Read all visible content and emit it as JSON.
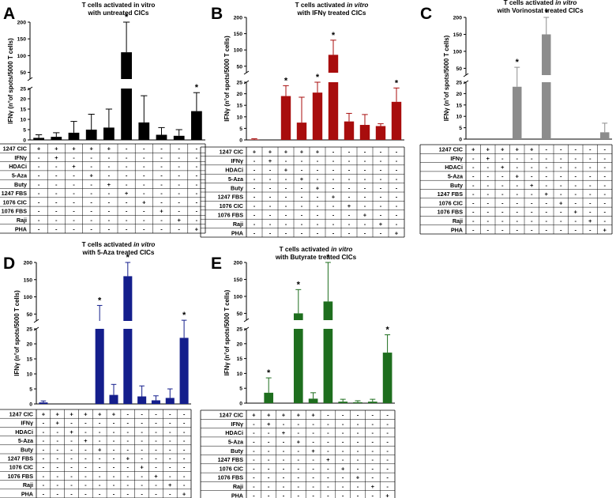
{
  "conditions": [
    "1247 CIC",
    "IFNγ",
    "HDACi",
    "5-Aza",
    "Buty",
    "1247 FBS",
    "1076 CIC",
    "1076 FBS",
    "Raji",
    "PHA"
  ],
  "ylabel": "IFNγ (n°of spots/5000 T cells)",
  "chart_data": [
    {
      "panel": "A",
      "type": "bar",
      "title_lines": [
        [
          {
            "t": "T cells activated in vitro",
            "i": false
          }
        ],
        [
          {
            "t": "with untreated CICs",
            "i": false
          }
        ]
      ],
      "color": "#000000",
      "ylabel": "IFNγ (n°of spots/5000 T cells)",
      "y_lower_ticks": [
        0,
        5,
        10,
        15,
        20,
        25
      ],
      "y_upper_ticks": [
        50,
        100,
        150,
        200
      ],
      "ylim_lower": [
        0,
        25
      ],
      "ylim_upper": [
        30,
        200
      ],
      "values": [
        1,
        1.5,
        3.5,
        5,
        6,
        110,
        8.5,
        2.5,
        2,
        14
      ],
      "errors": [
        1.5,
        2,
        5.5,
        7.5,
        9,
        90,
        13,
        3.5,
        3,
        9
      ],
      "significant": [
        false,
        false,
        false,
        false,
        false,
        true,
        false,
        false,
        false,
        true
      ],
      "condition_signs": [
        [
          "+",
          "+",
          "+",
          "+",
          "+",
          "-",
          "-",
          "-",
          "-",
          "-"
        ],
        [
          "-",
          "+",
          "-",
          "-",
          "-",
          "-",
          "-",
          "-",
          "-",
          "-"
        ],
        [
          "-",
          "-",
          "+",
          "-",
          "-",
          "-",
          "-",
          "-",
          "-",
          "-"
        ],
        [
          "-",
          "-",
          "-",
          "+",
          "-",
          "-",
          "-",
          "-",
          "-",
          "-"
        ],
        [
          "-",
          "-",
          "-",
          "-",
          "+",
          "-",
          "-",
          "-",
          "-",
          "-"
        ],
        [
          "-",
          "-",
          "-",
          "-",
          "-",
          "+",
          "-",
          "-",
          "-",
          "-"
        ],
        [
          "-",
          "-",
          "-",
          "-",
          "-",
          "-",
          "+",
          "-",
          "-",
          "-"
        ],
        [
          "-",
          "-",
          "-",
          "-",
          "-",
          "-",
          "-",
          "+",
          "-",
          "-"
        ],
        [
          "-",
          "-",
          "-",
          "-",
          "-",
          "-",
          "-",
          "-",
          "+",
          "-"
        ],
        [
          "-",
          "-",
          "-",
          "-",
          "-",
          "-",
          "-",
          "-",
          "-",
          "+"
        ]
      ]
    },
    {
      "panel": "B",
      "type": "bar",
      "title_lines": [
        [
          {
            "t": "T cells activated ",
            "i": false
          },
          {
            "t": "in vitro",
            "i": true
          }
        ],
        [
          {
            "t": "with IFNγ treated CICs",
            "i": false
          }
        ]
      ],
      "color": "#a80d0d",
      "ylabel": "IFNγ (n°of spots/5000 T cells)",
      "y_lower_ticks": [
        0,
        5,
        10,
        15,
        20,
        25
      ],
      "y_upper_ticks": [
        50,
        100,
        150,
        200
      ],
      "ylim_lower": [
        0,
        25
      ],
      "ylim_upper": [
        30,
        200
      ],
      "values": [
        0.2,
        0,
        19,
        7.5,
        20.5,
        85,
        8,
        6.5,
        6,
        16.5
      ],
      "errors": [
        0.3,
        0,
        4.5,
        11,
        4.5,
        45,
        3.5,
        4.5,
        1,
        6
      ],
      "significant": [
        false,
        false,
        true,
        false,
        true,
        true,
        false,
        false,
        false,
        true
      ],
      "condition_signs": [
        [
          "+",
          "+",
          "+",
          "+",
          "+",
          "-",
          "-",
          "-",
          "-",
          "-"
        ],
        [
          "-",
          "+",
          "-",
          "-",
          "-",
          "-",
          "-",
          "-",
          "-",
          "-"
        ],
        [
          "-",
          "-",
          "+",
          "-",
          "-",
          "-",
          "-",
          "-",
          "-",
          "-"
        ],
        [
          "-",
          "-",
          "-",
          "+",
          "-",
          "-",
          "-",
          "-",
          "-",
          "-"
        ],
        [
          "-",
          "-",
          "-",
          "-",
          "+",
          "-",
          "-",
          "-",
          "-",
          "-"
        ],
        [
          "-",
          "-",
          "-",
          "-",
          "-",
          "+",
          "-",
          "-",
          "-",
          "-"
        ],
        [
          "-",
          "-",
          "-",
          "-",
          "-",
          "-",
          "+",
          "-",
          "-",
          "-"
        ],
        [
          "-",
          "-",
          "-",
          "-",
          "-",
          "-",
          "-",
          "+",
          "-",
          "-"
        ],
        [
          "-",
          "-",
          "-",
          "-",
          "-",
          "-",
          "-",
          "-",
          "+",
          "-"
        ],
        [
          "-",
          "-",
          "-",
          "-",
          "-",
          "-",
          "-",
          "-",
          "-",
          "+"
        ]
      ]
    },
    {
      "panel": "C",
      "type": "bar",
      "title_lines": [
        [
          {
            "t": "T cells activated ",
            "i": false
          },
          {
            "t": "in vitro",
            "i": true
          }
        ],
        [
          {
            "t": "with Vorinostat treated CICs",
            "i": false
          }
        ]
      ],
      "color": "#8c8c8c",
      "ylabel": "IFNγ (n°of spots/5000 T cells)",
      "y_lower_ticks": [
        0,
        5,
        10,
        15,
        20,
        25
      ],
      "y_upper_ticks": [
        50,
        100,
        150,
        200
      ],
      "ylim_lower": [
        0,
        25
      ],
      "ylim_upper": [
        30,
        200
      ],
      "values": [
        0,
        0,
        0,
        23,
        0,
        150,
        0,
        0,
        0,
        3
      ],
      "errors": [
        0,
        0,
        0,
        30,
        0,
        50,
        0,
        0,
        0,
        4
      ],
      "significant": [
        false,
        false,
        false,
        true,
        false,
        true,
        false,
        false,
        false,
        false
      ],
      "condition_signs": [
        [
          "+",
          "+",
          "+",
          "+",
          "+",
          "-",
          "-",
          "-",
          "-",
          "-"
        ],
        [
          "-",
          "+",
          "-",
          "-",
          "-",
          "-",
          "-",
          "-",
          "-",
          "-"
        ],
        [
          "-",
          "-",
          "+",
          "-",
          "-",
          "-",
          "-",
          "-",
          "-",
          "-"
        ],
        [
          "-",
          "-",
          "-",
          "+",
          "-",
          "-",
          "-",
          "-",
          "-",
          "-"
        ],
        [
          "-",
          "-",
          "-",
          "-",
          "+",
          "-",
          "-",
          "-",
          "-",
          "-"
        ],
        [
          "-",
          "-",
          "-",
          "-",
          "-",
          "+",
          "-",
          "-",
          "-",
          "-"
        ],
        [
          "-",
          "-",
          "-",
          "-",
          "-",
          "-",
          "+",
          "-",
          "-",
          "-"
        ],
        [
          "-",
          "-",
          "-",
          "-",
          "-",
          "-",
          "-",
          "+",
          "-",
          "-"
        ],
        [
          "-",
          "-",
          "-",
          "-",
          "-",
          "-",
          "-",
          "-",
          "+",
          "-"
        ],
        [
          "-",
          "-",
          "-",
          "-",
          "-",
          "-",
          "-",
          "-",
          "-",
          "+"
        ]
      ]
    },
    {
      "panel": "D",
      "type": "bar",
      "title_lines": [
        [
          {
            "t": "T cells activated ",
            "i": false
          },
          {
            "t": "in vitro",
            "i": true
          }
        ],
        [
          {
            "t": "with 5-Aza treated CICs",
            "i": false
          }
        ]
      ],
      "color": "#141e8c",
      "ylabel": "IFNγ (n°of spots/5000 T cells)",
      "y_lower_ticks": [
        0,
        5,
        10,
        15,
        20,
        25
      ],
      "y_upper_ticks": [
        50,
        100,
        150,
        200
      ],
      "ylim_lower": [
        0,
        25
      ],
      "ylim_upper": [
        30,
        200
      ],
      "values": [
        0.5,
        0,
        0,
        0,
        30,
        3,
        160,
        2.5,
        1.2,
        2,
        22
      ],
      "errors": [
        0.5,
        0,
        0,
        0,
        45,
        3.5,
        40,
        3.5,
        1.5,
        3,
        10
      ],
      "significant": [
        false,
        false,
        false,
        false,
        true,
        false,
        true,
        false,
        false,
        false,
        true
      ],
      "condition_signs": [
        [
          "+",
          "+",
          "+",
          "+",
          "+",
          "+",
          "-",
          "-",
          "-",
          "-",
          "-"
        ],
        [
          "-",
          "+",
          "-",
          "-",
          "-",
          "-",
          "-",
          "-",
          "-",
          "-",
          "-"
        ],
        [
          "-",
          "-",
          "+",
          "-",
          "-",
          "-",
          "-",
          "-",
          "-",
          "-",
          "-"
        ],
        [
          "-",
          "-",
          "-",
          "+",
          "-",
          "-",
          "-",
          "-",
          "-",
          "-",
          "-"
        ],
        [
          "-",
          "-",
          "-",
          "-",
          "+",
          "-",
          "-",
          "-",
          "-",
          "-",
          "-"
        ],
        [
          "-",
          "-",
          "-",
          "-",
          "-",
          "-",
          "+",
          "-",
          "-",
          "-",
          "-"
        ],
        [
          "-",
          "-",
          "-",
          "-",
          "-",
          "-",
          "-",
          "+",
          "-",
          "-",
          "-"
        ],
        [
          "-",
          "-",
          "-",
          "-",
          "-",
          "-",
          "-",
          "-",
          "+",
          "-",
          "-"
        ],
        [
          "-",
          "-",
          "-",
          "-",
          "-",
          "-",
          "-",
          "-",
          "-",
          "+",
          "-"
        ],
        [
          "-",
          "-",
          "-",
          "-",
          "-",
          "-",
          "-",
          "-",
          "-",
          "-",
          "+"
        ]
      ]
    },
    {
      "panel": "E",
      "type": "bar",
      "title_lines": [
        [
          {
            "t": "T cells activated ",
            "i": false
          },
          {
            "t": "in vitro",
            "i": true
          }
        ],
        [
          {
            "t": "with Butyrate treated CICs",
            "i": false
          }
        ]
      ],
      "color": "#1e6e1e",
      "ylabel": "IFNγ (n°of spots/5000 T cells)",
      "y_lower_ticks": [
        0,
        5,
        10,
        15,
        20,
        25
      ],
      "y_upper_ticks": [
        50,
        100,
        150,
        200
      ],
      "ylim_lower": [
        0,
        25
      ],
      "ylim_upper": [
        30,
        200
      ],
      "values": [
        0,
        3.5,
        0,
        50,
        1.5,
        85,
        0.5,
        0.3,
        0.5,
        17
      ],
      "errors": [
        0,
        5,
        0,
        70,
        2,
        120,
        0.8,
        0.5,
        0.8,
        6
      ],
      "significant": [
        false,
        true,
        false,
        true,
        false,
        true,
        false,
        false,
        false,
        true
      ],
      "condition_signs": [
        [
          "+",
          "+",
          "+",
          "+",
          "+",
          "-",
          "-",
          "-",
          "-",
          "-"
        ],
        [
          "-",
          "+",
          "-",
          "-",
          "-",
          "-",
          "-",
          "-",
          "-",
          "-"
        ],
        [
          "-",
          "-",
          "+",
          "-",
          "-",
          "-",
          "-",
          "-",
          "-",
          "-"
        ],
        [
          "-",
          "-",
          "-",
          "+",
          "-",
          "-",
          "-",
          "-",
          "-",
          "-"
        ],
        [
          "-",
          "-",
          "-",
          "-",
          "+",
          "-",
          "-",
          "-",
          "-",
          "-"
        ],
        [
          "-",
          "-",
          "-",
          "-",
          "-",
          "+",
          "-",
          "-",
          "-",
          "-"
        ],
        [
          "-",
          "-",
          "-",
          "-",
          "-",
          "-",
          "+",
          "-",
          "-",
          "-"
        ],
        [
          "-",
          "-",
          "-",
          "-",
          "-",
          "-",
          "-",
          "+",
          "-",
          "-"
        ],
        [
          "-",
          "-",
          "-",
          "-",
          "-",
          "-",
          "-",
          "-",
          "+",
          "-"
        ],
        [
          "-",
          "-",
          "-",
          "-",
          "-",
          "-",
          "-",
          "-",
          "-",
          "+"
        ]
      ]
    }
  ]
}
